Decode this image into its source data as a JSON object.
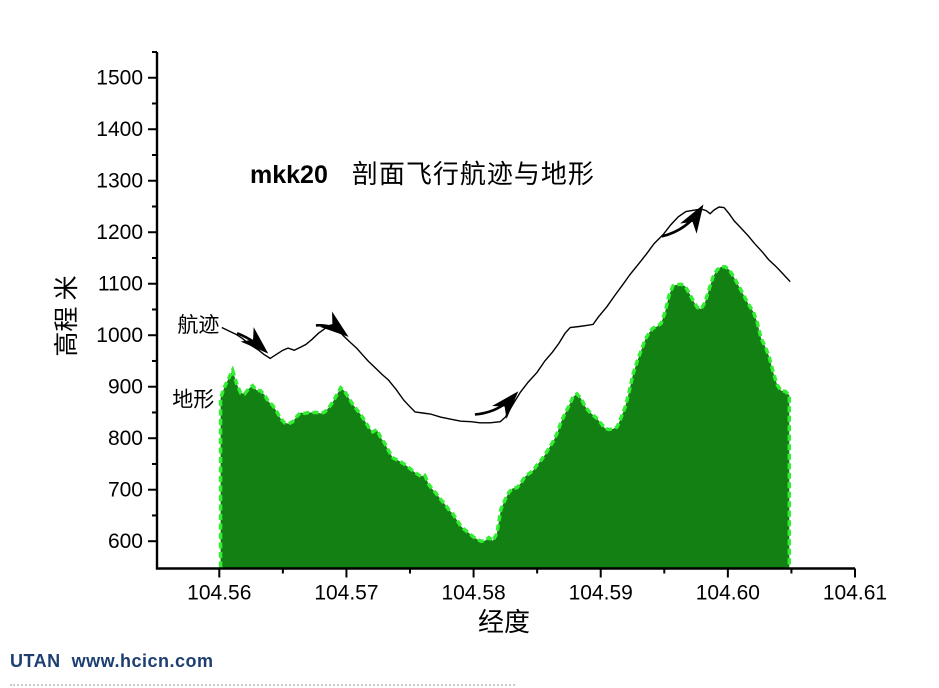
{
  "title": {
    "code": "mkk20",
    "text": "剖面飞行航迹与地形"
  },
  "watermark": {
    "text": "UTAN  www.hcicn.com",
    "color": "#1c3e70"
  },
  "chart_data": {
    "type": "area",
    "title": "mkk20  剖面飞行航迹与地形",
    "xlabel": "经度",
    "ylabel": "高程 米",
    "xlim": [
      104.5551,
      104.61
    ],
    "ylim": [
      547,
      1550
    ],
    "grid": false,
    "legend_position": "none",
    "x_ticks": {
      "major": [
        {
          "v": 104.56,
          "label": "104.56"
        },
        {
          "v": 104.57,
          "label": "104.57"
        },
        {
          "v": 104.58,
          "label": "104.58"
        },
        {
          "v": 104.59,
          "label": "104.59"
        },
        {
          "v": 104.6,
          "label": "104.60"
        },
        {
          "v": 104.61,
          "label": "104.61"
        }
      ],
      "minor": [
        104.565,
        104.575,
        104.585,
        104.595,
        104.605
      ]
    },
    "y_ticks": {
      "major": [
        {
          "v": 600,
          "label": "600"
        },
        {
          "v": 700,
          "label": "700"
        },
        {
          "v": 800,
          "label": "800"
        },
        {
          "v": 900,
          "label": "900"
        },
        {
          "v": 1000,
          "label": "1000"
        },
        {
          "v": 1100,
          "label": "1100"
        },
        {
          "v": 1200,
          "label": "1200"
        },
        {
          "v": 1300,
          "label": "1300"
        },
        {
          "v": 1400,
          "label": "1400"
        },
        {
          "v": 1500,
          "label": "1500"
        }
      ],
      "minor": [
        650,
        750,
        850,
        950,
        1050,
        1150,
        1250,
        1350,
        1450,
        1550
      ]
    },
    "series": [
      {
        "name": "地形",
        "type": "area",
        "fill": "#128012",
        "edge": "#33ee33",
        "lon_start": 104.5601,
        "lon_step": 0.000315,
        "values": [
          878,
          900,
          916,
          932,
          906,
          888,
          886,
          896,
          902,
          893,
          892,
          884,
          871,
          864,
          852,
          838,
          830,
          828,
          832,
          842,
          850,
          848,
          850,
          850,
          850,
          848,
          851,
          859,
          870,
          884,
          898,
          891,
          878,
          866,
          856,
          846,
          834,
          821,
          812,
          817,
          801,
          790,
          775,
          762,
          758,
          754,
          749,
          743,
          737,
          731,
          726,
          728,
          710,
          700,
          691,
          681,
          672,
          661,
          653,
          641,
          629,
          622,
          616,
          609,
          604,
          600,
          601,
          607,
          601,
          615,
          662,
          680,
          695,
          703,
          704,
          713,
          725,
          731,
          737,
          748,
          757,
          768,
          781,
          793,
          809,
          831,
          848,
          863,
          880,
          886,
          877,
          862,
          852,
          845,
          838,
          829,
          819,
          817,
          818,
          822,
          840,
          860,
          890,
          925,
          949,
          970,
          991,
          1005,
          1014,
          1017,
          1023,
          1045,
          1078,
          1096,
          1098,
          1099,
          1095,
          1082,
          1067,
          1054,
          1051,
          1065,
          1090,
          1114,
          1127,
          1133,
          1133,
          1127,
          1115,
          1101,
          1087,
          1072,
          1058,
          1046,
          1025,
          993,
          978,
          958,
          928,
          903,
          892,
          891,
          884
        ]
      },
      {
        "name": "航迹",
        "type": "line",
        "color": "#000000",
        "points": [
          [
            104.5602,
            1015
          ],
          [
            104.5607,
            1009
          ],
          [
            104.5613,
            1002
          ],
          [
            104.5618,
            994
          ],
          [
            104.5624,
            982
          ],
          [
            104.5631,
            971
          ],
          [
            104.5635,
            963
          ],
          [
            104.564,
            955
          ],
          [
            104.5645,
            963
          ],
          [
            104.565,
            971
          ],
          [
            104.5654,
            975
          ],
          [
            104.5659,
            971
          ],
          [
            104.5664,
            977
          ],
          [
            104.5668,
            982
          ],
          [
            104.5673,
            992
          ],
          [
            104.5678,
            1004
          ],
          [
            104.5682,
            1011
          ],
          [
            104.5685,
            1017
          ],
          [
            104.5689,
            1013
          ],
          [
            104.5694,
            1008
          ],
          [
            104.5698,
            998
          ],
          [
            104.5703,
            986
          ],
          [
            104.5708,
            975
          ],
          [
            104.5713,
            961
          ],
          [
            104.5717,
            950
          ],
          [
            104.5723,
            936
          ],
          [
            104.5728,
            924
          ],
          [
            104.5733,
            913
          ],
          [
            104.5739,
            895
          ],
          [
            104.5745,
            874
          ],
          [
            104.575,
            861
          ],
          [
            104.5754,
            851
          ],
          [
            104.576,
            849
          ],
          [
            104.5766,
            847
          ],
          [
            104.5774,
            841
          ],
          [
            104.5782,
            837
          ],
          [
            104.579,
            833
          ],
          [
            104.5798,
            832
          ],
          [
            104.5805,
            830
          ],
          [
            104.5813,
            830
          ],
          [
            104.5821,
            832
          ],
          [
            104.5825,
            841
          ],
          [
            104.5831,
            866
          ],
          [
            104.5837,
            890
          ],
          [
            104.5843,
            909
          ],
          [
            104.585,
            928
          ],
          [
            104.5856,
            950
          ],
          [
            104.5862,
            967
          ],
          [
            104.5867,
            984
          ],
          [
            104.5872,
            1004
          ],
          [
            104.5876,
            1015
          ],
          [
            104.5883,
            1017
          ],
          [
            104.5889,
            1019
          ],
          [
            104.5894,
            1021
          ],
          [
            104.5898,
            1035
          ],
          [
            104.5905,
            1056
          ],
          [
            104.5911,
            1077
          ],
          [
            104.5917,
            1097
          ],
          [
            104.5923,
            1118
          ],
          [
            104.593,
            1139
          ],
          [
            104.5936,
            1158
          ],
          [
            104.5942,
            1178
          ],
          [
            104.5949,
            1195
          ],
          [
            104.5955,
            1214
          ],
          [
            104.5961,
            1230
          ],
          [
            104.5967,
            1240
          ],
          [
            104.5974,
            1243
          ],
          [
            104.5979,
            1245
          ],
          [
            104.5983,
            1242
          ],
          [
            104.5986,
            1236
          ],
          [
            104.5989,
            1243
          ],
          [
            104.5993,
            1249
          ],
          [
            104.5997,
            1248
          ],
          [
            104.6001,
            1236
          ],
          [
            104.6005,
            1222
          ],
          [
            104.601,
            1209
          ],
          [
            104.6016,
            1193
          ],
          [
            104.6021,
            1178
          ],
          [
            104.6027,
            1162
          ],
          [
            104.6032,
            1147
          ],
          [
            104.6038,
            1133
          ],
          [
            104.6043,
            1120
          ],
          [
            104.6049,
            1104
          ]
        ]
      }
    ],
    "labels": [
      {
        "text": "航迹",
        "lon": 104.5567,
        "elev": 1006
      },
      {
        "text": "地形",
        "lon": 104.5563,
        "elev": 862
      }
    ],
    "arrows": [
      {
        "from": [
          104.5614,
          1004
        ],
        "to": [
          104.5636,
          970
        ],
        "bend": -3
      },
      {
        "from": [
          104.5676,
          1019
        ],
        "to": [
          104.5699,
          1002
        ],
        "bend": -6
      },
      {
        "from": [
          104.5801,
          846
        ],
        "to": [
          104.5833,
          885
        ],
        "bend": 9
      },
      {
        "from": [
          104.5948,
          1192
        ],
        "to": [
          104.5979,
          1247
        ],
        "bend": 10
      }
    ]
  }
}
